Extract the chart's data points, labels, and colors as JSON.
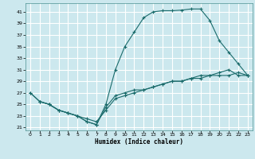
{
  "xlabel": "Humidex (Indice chaleur)",
  "background_color": "#cce8ee",
  "grid_color": "#b0d8e0",
  "line_color": "#1a6b6b",
  "xlim": [
    -0.5,
    23.5
  ],
  "ylim": [
    20.5,
    42.5
  ],
  "yticks": [
    21,
    23,
    25,
    27,
    29,
    31,
    33,
    35,
    37,
    39,
    41
  ],
  "xticks": [
    0,
    1,
    2,
    3,
    4,
    5,
    6,
    7,
    8,
    9,
    10,
    11,
    12,
    13,
    14,
    15,
    16,
    17,
    18,
    19,
    20,
    21,
    22,
    23
  ],
  "curve1_x": [
    0,
    1,
    2,
    3,
    4,
    5,
    6,
    7,
    7,
    8,
    9,
    10,
    11,
    12,
    13,
    14,
    15,
    16,
    17,
    18,
    19,
    20,
    21,
    22,
    23
  ],
  "curve1_y": [
    27,
    25.5,
    25,
    24,
    23.5,
    23,
    22,
    21.5,
    21.5,
    25,
    31,
    35,
    37.5,
    40,
    41,
    41.2,
    41.2,
    41.3,
    41.5,
    41.5,
    39.5,
    36,
    34,
    32,
    30
  ],
  "curve2_x": [
    1,
    2,
    3,
    4,
    5,
    6,
    7,
    8,
    9,
    10,
    11,
    12,
    13,
    14,
    15,
    16,
    17,
    18,
    19,
    20,
    21,
    22,
    23
  ],
  "curve2_y": [
    25.5,
    25,
    24,
    23.5,
    23,
    22.5,
    22,
    24,
    26,
    26.5,
    27,
    27.5,
    28,
    28.5,
    29,
    29,
    29.5,
    29.5,
    30,
    30.5,
    31,
    30,
    30
  ],
  "curve3_x": [
    0,
    1,
    2,
    3,
    4,
    5,
    6,
    7,
    8,
    9,
    10,
    11,
    12,
    13,
    14,
    15,
    16,
    17,
    18,
    19,
    20,
    21,
    22,
    23
  ],
  "curve3_y": [
    27,
    25.5,
    25,
    24,
    23.5,
    23,
    22,
    21.5,
    24.5,
    26.5,
    27,
    27.5,
    27.5,
    28,
    28.5,
    29,
    29,
    29.5,
    30,
    30,
    30,
    30,
    30.5,
    30
  ]
}
